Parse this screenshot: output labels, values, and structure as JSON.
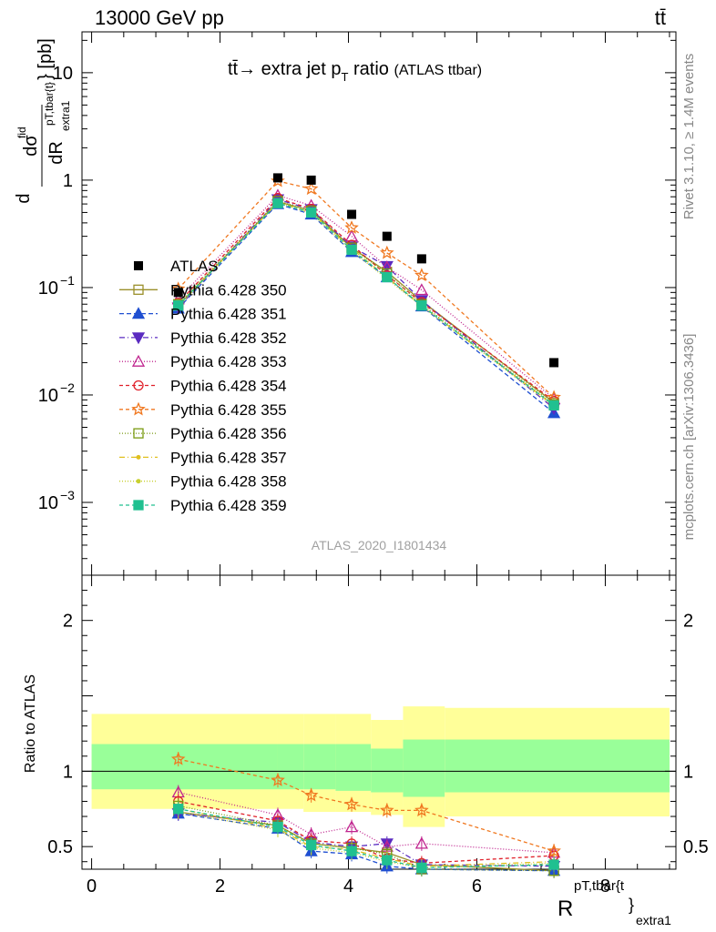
{
  "header": {
    "left": "13000 GeV pp",
    "right": "tt̄"
  },
  "side_labels": {
    "rivet": "Rivet 3.1.10, ≥ 1.4M events",
    "mcplots": "mcplots.cern.ch [arXiv:1306.3436]"
  },
  "watermark": "ATLAS_2020_I1801434",
  "colors": {
    "data": "#000000",
    "band_outer": "#ffff99",
    "band_inner": "#99ff99"
  },
  "chart_data": [
    {
      "type": "line",
      "panel": "main",
      "title": "tt̄→ extra jet p_T ratio",
      "title_note": "(ATLAS ttbar)",
      "ylabel": "d dσ^fid / dR^{pT,tbar{t}}_{extra1} [pb]",
      "yscale": "log",
      "xlim": [
        -0.15,
        9.1
      ],
      "ylim": [
        0.00021,
        24
      ],
      "y_ticks": [
        {
          "v": 10,
          "label": "10"
        },
        {
          "v": 1,
          "label": "1"
        },
        {
          "v": 0.1,
          "label": "10",
          "exp": "−1"
        },
        {
          "v": 0.01,
          "label": "10",
          "exp": "−2"
        },
        {
          "v": 0.001,
          "label": "10",
          "exp": "−3"
        }
      ],
      "x": [
        1.35,
        2.9,
        3.42,
        4.05,
        4.6,
        5.14,
        7.2
      ],
      "data": {
        "name": "ATLAS",
        "values": [
          0.09,
          1.05,
          1.0,
          0.48,
          0.3,
          0.185,
          0.02
        ]
      },
      "legend_position": "left",
      "series": [
        {
          "name": "Pythia 6.428 350",
          "color": "#9a8f2a",
          "dash": "",
          "marker": "square-open",
          "values": [
            0.068,
            0.63,
            0.52,
            0.235,
            0.14,
            0.075,
            0.0085
          ]
        },
        {
          "name": "Pythia 6.428 351",
          "color": "#1f4fd1",
          "dash": "5,3",
          "marker": "triangle-up",
          "values": [
            0.064,
            0.6,
            0.48,
            0.215,
            0.125,
            0.067,
            0.0068
          ]
        },
        {
          "name": "Pythia 6.428 352",
          "color": "#5a2bc0",
          "dash": "6,3,1,3",
          "marker": "triangle-down",
          "values": [
            0.065,
            0.66,
            0.535,
            0.24,
            0.158,
            0.076,
            0.0075
          ]
        },
        {
          "name": "Pythia 6.428 353",
          "color": "#c0258f",
          "dash": "1,2",
          "marker": "triangle-open",
          "values": [
            0.078,
            0.72,
            0.58,
            0.3,
            0.155,
            0.095,
            0.0092
          ]
        },
        {
          "name": "Pythia 6.428 354",
          "color": "#e0202a",
          "dash": "4,3",
          "marker": "circle-open",
          "values": [
            0.072,
            0.68,
            0.54,
            0.25,
            0.13,
            0.073,
            0.0088
          ]
        },
        {
          "name": "Pythia 6.428 355",
          "color": "#f07820",
          "dash": "4,3",
          "marker": "star-open",
          "values": [
            0.097,
            0.98,
            0.83,
            0.36,
            0.21,
            0.13,
            0.0095
          ]
        },
        {
          "name": "Pythia 6.428 356",
          "color": "#7a9a10",
          "dash": "1,2",
          "marker": "square-open",
          "values": [
            0.07,
            0.64,
            0.52,
            0.235,
            0.135,
            0.07,
            0.0082
          ]
        },
        {
          "name": "Pythia 6.428 357",
          "color": "#e0c020",
          "dash": "6,3,1,3",
          "marker": "dot",
          "values": [
            0.068,
            0.62,
            0.5,
            0.23,
            0.125,
            0.068,
            0.008
          ]
        },
        {
          "name": "Pythia 6.428 358",
          "color": "#c8d030",
          "dash": "1,2",
          "marker": "dot",
          "values": [
            0.066,
            0.62,
            0.49,
            0.22,
            0.12,
            0.067,
            0.0078
          ]
        },
        {
          "name": "Pythia 6.428 359",
          "color": "#20c090",
          "dash": "4,3",
          "marker": "square",
          "values": [
            0.068,
            0.61,
            0.5,
            0.225,
            0.125,
            0.068,
            0.008
          ]
        }
      ]
    },
    {
      "type": "line",
      "panel": "ratio",
      "ylabel": "Ratio to ATLAS",
      "xlabel": "R",
      "xlabel_sup": "pT,tbar{t",
      "xlabel_sub": "}",
      "xlabel_sub2": "extra1",
      "xlim": [
        -0.15,
        9.1
      ],
      "ylim": [
        0.35,
        2.3
      ],
      "x_ticks": [
        0,
        2,
        4,
        6,
        8
      ],
      "y_ticks": [
        0.5,
        1,
        2
      ],
      "reference": 1,
      "bands": {
        "edges": [
          0,
          1.9,
          2.9,
          3.3,
          3.8,
          4.35,
          4.85,
          5.5,
          9.0
        ],
        "inner": [
          [
            0.88,
            1.18
          ],
          [
            0.88,
            1.18
          ],
          [
            0.88,
            1.18
          ],
          [
            0.88,
            1.18
          ],
          [
            0.87,
            1.18
          ],
          [
            0.86,
            1.15
          ],
          [
            0.83,
            1.21
          ],
          [
            0.86,
            1.21
          ]
        ],
        "outer": [
          [
            0.75,
            1.38
          ],
          [
            0.75,
            1.38
          ],
          [
            0.75,
            1.38
          ],
          [
            0.73,
            1.38
          ],
          [
            0.73,
            1.38
          ],
          [
            0.71,
            1.34
          ],
          [
            0.63,
            1.43
          ],
          [
            0.7,
            1.42
          ]
        ]
      },
      "x": [
        1.35,
        2.9,
        3.42,
        4.05,
        4.6,
        5.14,
        7.2
      ],
      "series": [
        {
          "name": "Pythia 6.428 350",
          "values": [
            0.73,
            0.64,
            0.52,
            0.49,
            0.46,
            0.38,
            0.34
          ]
        },
        {
          "name": "Pythia 6.428 351",
          "values": [
            0.72,
            0.62,
            0.47,
            0.45,
            0.37,
            0.35,
            0.34
          ]
        },
        {
          "name": "Pythia 6.428 352",
          "values": [
            0.72,
            0.66,
            0.53,
            0.5,
            0.52,
            0.38,
            0.37
          ]
        },
        {
          "name": "Pythia 6.428 353",
          "values": [
            0.86,
            0.71,
            0.58,
            0.63,
            0.5,
            0.52,
            0.46
          ]
        },
        {
          "name": "Pythia 6.428 354",
          "values": [
            0.8,
            0.67,
            0.54,
            0.52,
            0.42,
            0.39,
            0.44
          ]
        },
        {
          "name": "Pythia 6.428 355",
          "values": [
            1.08,
            0.94,
            0.84,
            0.78,
            0.74,
            0.74,
            0.47
          ]
        },
        {
          "name": "Pythia 6.428 356",
          "values": [
            0.77,
            0.64,
            0.52,
            0.49,
            0.45,
            0.35,
            0.34
          ]
        },
        {
          "name": "Pythia 6.428 357",
          "values": [
            0.75,
            0.62,
            0.5,
            0.48,
            0.42,
            0.37,
            0.4
          ]
        },
        {
          "name": "Pythia 6.428 358",
          "values": [
            0.73,
            0.61,
            0.49,
            0.46,
            0.4,
            0.36,
            0.39
          ]
        },
        {
          "name": "Pythia 6.428 359",
          "values": [
            0.75,
            0.63,
            0.51,
            0.47,
            0.41,
            0.36,
            0.38
          ]
        }
      ]
    }
  ]
}
